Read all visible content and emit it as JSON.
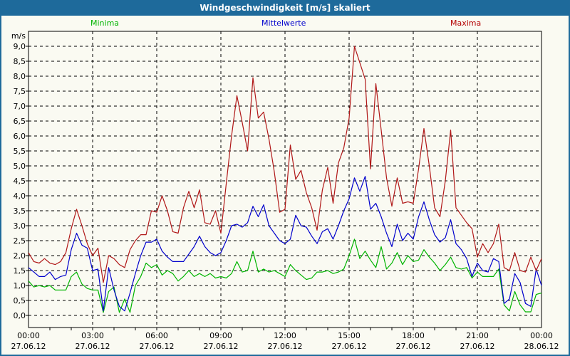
{
  "title_bar": {
    "title": "Windgeschwindigkeit [m/s] skaliert"
  },
  "colors": {
    "titlebar_bg": "#1e6a9b",
    "titlebar_text": "#ffffff",
    "window_bg": "#fafaf2",
    "frame": "#000000",
    "grid": "#000000",
    "minima": "#00b400",
    "mittelwerte": "#0000cc",
    "maxima": "#b01818",
    "legend_minima": "#00b400",
    "legend_mittelwerte": "#0000cc",
    "legend_maxima": "#b40000"
  },
  "chart_data": {
    "type": "line",
    "title": "Windgeschwindigkeit [m/s] skaliert",
    "unit_label": "m/s",
    "xlabel": "",
    "ylabel": "m/s",
    "ylim": [
      0,
      9
    ],
    "y_tick_step": 0.5,
    "y_ticks": [
      "0,0",
      "0,5",
      "1,0",
      "1,5",
      "2,0",
      "2,5",
      "3,0",
      "3,5",
      "4,0",
      "4,5",
      "5,0",
      "5,5",
      "6,0",
      "6,5",
      "7,0",
      "7,5",
      "8,0",
      "8,5",
      "9,0"
    ],
    "x_start_hours": 0,
    "x_end_hours": 24,
    "x_step_hours": 0.25,
    "x_minor_tick_hours": 1,
    "grid": "dashed",
    "legend_position": "top",
    "x_major_ticks": [
      {
        "hour": 0,
        "time": "00:00",
        "date": "27.06.12"
      },
      {
        "hour": 3,
        "time": "03:00",
        "date": "27.06.12"
      },
      {
        "hour": 6,
        "time": "06:00",
        "date": "27.06.12"
      },
      {
        "hour": 9,
        "time": "09:00",
        "date": "27.06.12"
      },
      {
        "hour": 12,
        "time": "12:00",
        "date": "27.06.12"
      },
      {
        "hour": 15,
        "time": "15:00",
        "date": "27.06.12"
      },
      {
        "hour": 18,
        "time": "18:00",
        "date": "27.06.12"
      },
      {
        "hour": 21,
        "time": "21:00",
        "date": "27.06.12"
      },
      {
        "hour": 24,
        "time": "00:00",
        "date": "28.06.12"
      }
    ],
    "legend": [
      {
        "label": "Minima",
        "color": "#00b400"
      },
      {
        "label": "Mittelwerte",
        "color": "#0000cc"
      },
      {
        "label": "Maxima",
        "color": "#b40000"
      }
    ],
    "series": [
      {
        "name": "Minima",
        "color": "#00b400",
        "values": [
          1.15,
          0.95,
          1.0,
          0.95,
          1.0,
          0.85,
          0.85,
          0.85,
          1.3,
          1.45,
          1.05,
          0.9,
          0.85,
          0.85,
          0.1,
          0.8,
          0.95,
          0.1,
          0.55,
          0.1,
          1.0,
          1.3,
          1.75,
          1.6,
          1.7,
          1.35,
          1.5,
          1.4,
          1.15,
          1.3,
          1.5,
          1.3,
          1.4,
          1.3,
          1.4,
          1.25,
          1.3,
          1.25,
          1.4,
          1.8,
          1.45,
          1.5,
          2.15,
          1.45,
          1.55,
          1.45,
          1.5,
          1.4,
          1.3,
          1.7,
          1.5,
          1.35,
          1.2,
          1.25,
          1.45,
          1.45,
          1.5,
          1.4,
          1.45,
          1.55,
          2.0,
          2.55,
          1.9,
          2.15,
          1.85,
          1.6,
          2.3,
          1.55,
          1.75,
          2.1,
          1.7,
          2.0,
          1.8,
          1.85,
          2.2,
          1.95,
          1.75,
          1.5,
          1.7,
          1.95,
          1.6,
          1.55,
          1.6,
          1.25,
          1.45,
          1.3,
          1.3,
          1.3,
          1.55,
          0.35,
          0.15,
          0.8,
          0.35,
          0.12,
          0.12,
          0.7,
          0.75
        ]
      },
      {
        "name": "Mittelwerte",
        "color": "#0000cc",
        "values": [
          1.6,
          1.45,
          1.3,
          1.3,
          1.45,
          1.2,
          1.3,
          1.35,
          2.2,
          2.75,
          2.35,
          2.25,
          1.5,
          1.55,
          0.15,
          1.6,
          0.85,
          0.3,
          0.15,
          0.75,
          1.4,
          2.0,
          2.45,
          2.45,
          2.55,
          2.15,
          1.95,
          1.8,
          1.8,
          1.8,
          2.05,
          2.3,
          2.65,
          2.3,
          2.1,
          2.0,
          2.1,
          2.5,
          3.0,
          3.05,
          2.95,
          3.1,
          3.65,
          3.3,
          3.7,
          3.0,
          2.75,
          2.5,
          2.4,
          2.55,
          3.35,
          3.0,
          2.95,
          2.65,
          2.4,
          2.8,
          2.9,
          2.55,
          3.0,
          3.5,
          3.9,
          4.6,
          4.15,
          4.65,
          3.55,
          3.75,
          3.3,
          2.75,
          2.3,
          3.05,
          2.5,
          2.75,
          2.55,
          3.3,
          3.8,
          3.2,
          2.7,
          2.45,
          2.6,
          3.2,
          2.4,
          2.2,
          1.9,
          1.3,
          1.75,
          1.5,
          1.45,
          1.9,
          1.8,
          0.4,
          0.55,
          1.4,
          1.1,
          0.4,
          0.3,
          1.55,
          1.0
        ]
      },
      {
        "name": "Maxima",
        "color": "#b01818",
        "values": [
          2.1,
          1.8,
          1.75,
          1.9,
          1.75,
          1.7,
          1.8,
          2.1,
          2.9,
          3.55,
          3.0,
          2.4,
          2.0,
          2.25,
          1.1,
          2.0,
          1.9,
          1.7,
          1.6,
          2.2,
          2.5,
          2.7,
          2.7,
          3.5,
          3.45,
          4.0,
          3.5,
          2.8,
          2.75,
          3.6,
          4.15,
          3.6,
          4.2,
          3.1,
          3.05,
          3.5,
          2.75,
          4.4,
          6.0,
          7.35,
          6.45,
          5.5,
          7.95,
          6.6,
          6.8,
          5.9,
          4.8,
          3.45,
          3.55,
          5.7,
          4.55,
          4.85,
          4.1,
          3.6,
          2.85,
          4.2,
          4.95,
          3.75,
          5.1,
          5.6,
          6.6,
          9.0,
          8.45,
          7.9,
          4.9,
          7.75,
          6.2,
          4.6,
          3.65,
          4.6,
          3.75,
          3.8,
          3.75,
          4.9,
          6.25,
          5.0,
          3.6,
          3.3,
          4.5,
          6.2,
          3.6,
          3.35,
          3.1,
          2.9,
          1.95,
          2.4,
          2.1,
          2.4,
          3.05,
          1.6,
          1.5,
          2.1,
          1.5,
          1.45,
          1.95,
          1.5,
          1.9
        ]
      }
    ]
  }
}
